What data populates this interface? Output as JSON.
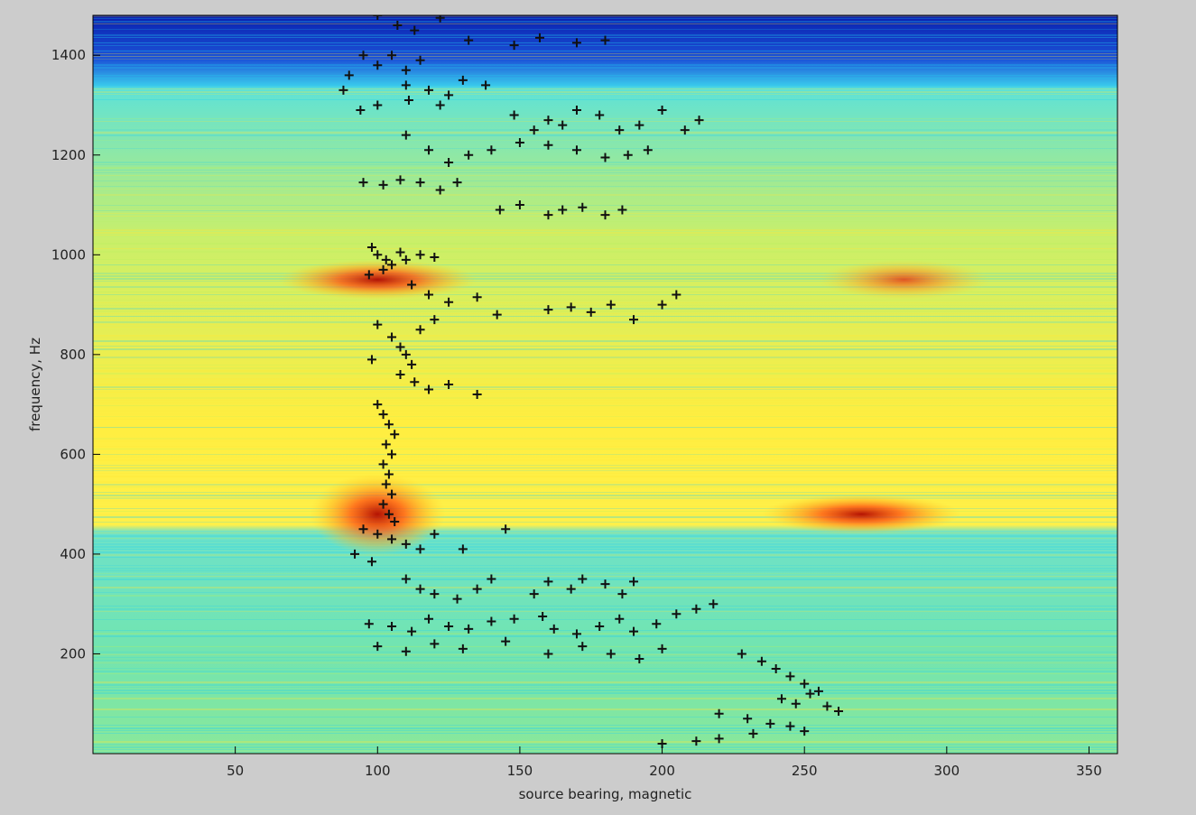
{
  "chart_data": {
    "type": "heatmap",
    "title": "",
    "xlabel": "source bearing, magnetic",
    "ylabel": "frequency, Hz",
    "xlim": [
      0,
      360
    ],
    "ylim": [
      0,
      1480
    ],
    "xticks": [
      50,
      100,
      150,
      200,
      250,
      300,
      350
    ],
    "xtick_labels": [
      "50",
      "100",
      "150",
      "200",
      "250",
      "300",
      "350"
    ],
    "yticks": [
      200,
      400,
      600,
      800,
      1000,
      1200,
      1400
    ],
    "ytick_labels": [
      "200",
      "400",
      "600",
      "800",
      "1000",
      "1200",
      "1400"
    ],
    "grid": false,
    "colormap": "jet",
    "colors": {
      "figure_background": "#cccccc",
      "marker": "#111111",
      "low": "#1020c0",
      "mid": "#30d8e8",
      "high": "#ffee30",
      "peak": "#c01000"
    },
    "heatmap_bands": [
      {
        "f_min": 1380,
        "f_max": 1480,
        "level": "low"
      },
      {
        "f_min": 460,
        "f_max": 1380,
        "level": "mid-high"
      },
      {
        "f_min": 0,
        "f_max": 460,
        "level": "mid"
      }
    ],
    "hotspots": [
      {
        "bearing": 100,
        "frequency": 950,
        "intensity": "high"
      },
      {
        "bearing": 100,
        "frequency": 480,
        "intensity": "peak"
      },
      {
        "bearing": 270,
        "frequency": 480,
        "intensity": "high"
      },
      {
        "bearing": 285,
        "frequency": 950,
        "intensity": "moderate"
      }
    ],
    "series": [
      {
        "marker": "+",
        "points": [
          [
            100,
            1480
          ],
          [
            107,
            1460
          ],
          [
            113,
            1450
          ],
          [
            122,
            1475
          ],
          [
            132,
            1430
          ],
          [
            148,
            1420
          ],
          [
            157,
            1435
          ],
          [
            170,
            1425
          ],
          [
            180,
            1430
          ],
          [
            95,
            1400
          ],
          [
            100,
            1380
          ],
          [
            105,
            1400
          ],
          [
            110,
            1370
          ],
          [
            115,
            1390
          ],
          [
            90,
            1360
          ],
          [
            88,
            1330
          ],
          [
            94,
            1290
          ],
          [
            100,
            1300
          ],
          [
            110,
            1340
          ],
          [
            118,
            1330
          ],
          [
            125,
            1320
          ],
          [
            130,
            1350
          ],
          [
            138,
            1340
          ],
          [
            111,
            1310
          ],
          [
            122,
            1300
          ],
          [
            148,
            1280
          ],
          [
            155,
            1250
          ],
          [
            160,
            1270
          ],
          [
            165,
            1260
          ],
          [
            170,
            1290
          ],
          [
            178,
            1280
          ],
          [
            185,
            1250
          ],
          [
            192,
            1260
          ],
          [
            200,
            1290
          ],
          [
            208,
            1250
          ],
          [
            213,
            1270
          ],
          [
            150,
            1225
          ],
          [
            160,
            1220
          ],
          [
            170,
            1210
          ],
          [
            180,
            1195
          ],
          [
            188,
            1200
          ],
          [
            195,
            1210
          ],
          [
            110,
            1240
          ],
          [
            118,
            1210
          ],
          [
            125,
            1185
          ],
          [
            132,
            1200
          ],
          [
            140,
            1210
          ],
          [
            95,
            1145
          ],
          [
            102,
            1140
          ],
          [
            108,
            1150
          ],
          [
            115,
            1145
          ],
          [
            122,
            1130
          ],
          [
            128,
            1145
          ],
          [
            143,
            1090
          ],
          [
            150,
            1100
          ],
          [
            160,
            1080
          ],
          [
            165,
            1090
          ],
          [
            172,
            1095
          ],
          [
            180,
            1080
          ],
          [
            186,
            1090
          ],
          [
            98,
            1015
          ],
          [
            100,
            1000
          ],
          [
            103,
            990
          ],
          [
            105,
            980
          ],
          [
            102,
            970
          ],
          [
            97,
            960
          ],
          [
            108,
            1005
          ],
          [
            110,
            990
          ],
          [
            115,
            1000
          ],
          [
            120,
            995
          ],
          [
            112,
            940
          ],
          [
            118,
            920
          ],
          [
            125,
            905
          ],
          [
            135,
            915
          ],
          [
            142,
            880
          ],
          [
            160,
            890
          ],
          [
            168,
            895
          ],
          [
            175,
            885
          ],
          [
            182,
            900
          ],
          [
            190,
            870
          ],
          [
            200,
            900
          ],
          [
            205,
            920
          ],
          [
            100,
            860
          ],
          [
            105,
            835
          ],
          [
            108,
            815
          ],
          [
            110,
            800
          ],
          [
            112,
            780
          ],
          [
            98,
            790
          ],
          [
            115,
            850
          ],
          [
            120,
            870
          ],
          [
            108,
            760
          ],
          [
            113,
            745
          ],
          [
            118,
            730
          ],
          [
            125,
            740
          ],
          [
            135,
            720
          ],
          [
            100,
            700
          ],
          [
            102,
            680
          ],
          [
            104,
            660
          ],
          [
            106,
            640
          ],
          [
            103,
            620
          ],
          [
            105,
            600
          ],
          [
            102,
            580
          ],
          [
            104,
            560
          ],
          [
            103,
            540
          ],
          [
            105,
            520
          ],
          [
            102,
            500
          ],
          [
            104,
            480
          ],
          [
            106,
            465
          ],
          [
            95,
            450
          ],
          [
            100,
            440
          ],
          [
            105,
            430
          ],
          [
            110,
            420
          ],
          [
            115,
            410
          ],
          [
            92,
            400
          ],
          [
            98,
            385
          ],
          [
            120,
            440
          ],
          [
            130,
            410
          ],
          [
            145,
            450
          ],
          [
            110,
            350
          ],
          [
            115,
            330
          ],
          [
            120,
            320
          ],
          [
            128,
            310
          ],
          [
            135,
            330
          ],
          [
            140,
            350
          ],
          [
            155,
            320
          ],
          [
            160,
            345
          ],
          [
            168,
            330
          ],
          [
            172,
            350
          ],
          [
            180,
            340
          ],
          [
            186,
            320
          ],
          [
            190,
            345
          ],
          [
            97,
            260
          ],
          [
            105,
            255
          ],
          [
            112,
            245
          ],
          [
            118,
            270
          ],
          [
            125,
            255
          ],
          [
            132,
            250
          ],
          [
            140,
            265
          ],
          [
            148,
            270
          ],
          [
            158,
            275
          ],
          [
            162,
            250
          ],
          [
            170,
            240
          ],
          [
            178,
            255
          ],
          [
            185,
            270
          ],
          [
            190,
            245
          ],
          [
            198,
            260
          ],
          [
            205,
            280
          ],
          [
            212,
            290
          ],
          [
            218,
            300
          ],
          [
            100,
            215
          ],
          [
            110,
            205
          ],
          [
            120,
            220
          ],
          [
            130,
            210
          ],
          [
            145,
            225
          ],
          [
            160,
            200
          ],
          [
            172,
            215
          ],
          [
            182,
            200
          ],
          [
            192,
            190
          ],
          [
            200,
            210
          ],
          [
            228,
            200
          ],
          [
            235,
            185
          ],
          [
            240,
            170
          ],
          [
            245,
            155
          ],
          [
            250,
            140
          ],
          [
            255,
            125
          ],
          [
            242,
            110
          ],
          [
            247,
            100
          ],
          [
            252,
            120
          ],
          [
            258,
            95
          ],
          [
            262,
            85
          ],
          [
            220,
            80
          ],
          [
            230,
            70
          ],
          [
            238,
            60
          ],
          [
            245,
            55
          ],
          [
            250,
            45
          ],
          [
            232,
            40
          ],
          [
            220,
            30
          ],
          [
            212,
            25
          ],
          [
            200,
            20
          ]
        ]
      }
    ]
  }
}
